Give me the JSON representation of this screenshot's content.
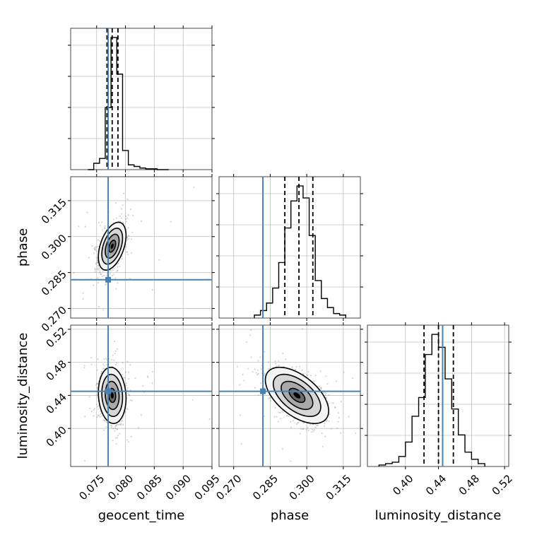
{
  "chart_data": {
    "type": "corner",
    "parameters": [
      "geocent_time",
      "phase",
      "luminosity_distance"
    ],
    "truths": {
      "geocent_time": 0.077,
      "phase": 0.282,
      "luminosity_distance": 0.445
    },
    "colors": {
      "truth": "#4682b4",
      "hist": "#000000",
      "grid": "#c0c0c0",
      "scatter": "#888888"
    },
    "grid": true,
    "axes": {
      "geocent_time": {
        "xlim": [
          0.0705,
          0.095
        ],
        "ticks": [
          0.075,
          0.08,
          0.085,
          0.09,
          0.095
        ],
        "tick_labels": [
          "0.075",
          "0.080",
          "0.085",
          "0.090",
          "0.095"
        ]
      },
      "phase": {
        "xlim": [
          0.264,
          0.322
        ],
        "ticks": [
          0.27,
          0.285,
          0.3,
          0.315
        ],
        "tick_labels": [
          "0.270",
          "0.285",
          "0.300",
          "0.315"
        ]
      },
      "luminosity_distance": {
        "xlim": [
          0.354,
          0.525
        ],
        "ticks": [
          0.4,
          0.44,
          0.48,
          0.52
        ],
        "tick_labels": [
          "0.40",
          "0.44",
          "0.48",
          "0.52"
        ]
      }
    },
    "histograms": [
      {
        "param": "geocent_time",
        "bins": [
          0.0735,
          0.0745,
          0.0755,
          0.0765,
          0.0775,
          0.0785,
          0.0795,
          0.0805,
          0.0815,
          0.0825,
          0.0835,
          0.0845,
          0.0855,
          0.0865
        ],
        "counts": [
          0,
          4,
          7,
          39,
          83,
          60,
          12,
          3,
          2,
          1,
          0.5,
          0.5,
          0,
          0
        ],
        "quantiles": [
          0.0768,
          0.0777,
          0.0787
        ]
      },
      {
        "param": "phase",
        "bins": [
          0.2785,
          0.281,
          0.2835,
          0.286,
          0.2885,
          0.291,
          0.2935,
          0.296,
          0.2985,
          0.301,
          0.3035,
          0.306,
          0.3085,
          0.311,
          0.3135
        ],
        "counts": [
          2,
          5,
          10,
          20,
          37,
          60,
          78,
          88,
          80,
          55,
          25,
          13,
          7,
          3,
          2
        ],
        "quantiles": [
          0.291,
          0.2968,
          0.3025
        ]
      },
      {
        "param": "luminosity_distance",
        "bins": [
          0.368,
          0.376,
          0.384,
          0.392,
          0.4,
          0.408,
          0.416,
          0.424,
          0.432,
          0.44,
          0.448,
          0.456,
          0.464,
          0.472,
          0.48,
          0.488
        ],
        "counts": [
          1,
          2,
          3,
          7,
          17,
          35,
          48,
          78,
          92,
          83,
          61,
          40,
          22,
          10,
          5,
          2
        ],
        "quantiles": [
          0.4225,
          0.44,
          0.458
        ]
      }
    ],
    "panels_2d": [
      {
        "x": "geocent_time",
        "y": "phase",
        "center": [
          0.0777,
          0.296
        ],
        "sigma": [
          0.0012,
          0.005
        ],
        "rho": 0.45,
        "ylim": [
          0.266,
          0.325
        ],
        "yticks": [
          0.27,
          0.285,
          0.3,
          0.315
        ],
        "ytick_labels": [
          "0.270",
          "0.285",
          "0.300",
          "0.315"
        ]
      },
      {
        "x": "geocent_time",
        "y": "luminosity_distance",
        "center": [
          0.0777,
          0.44
        ],
        "sigma": [
          0.0012,
          0.017
        ],
        "rho": -0.1,
        "ylim": [
          0.354,
          0.525
        ],
        "yticks": [
          0.4,
          0.44,
          0.48,
          0.52
        ],
        "ytick_labels": [
          "0.40",
          "0.44",
          "0.48",
          "0.52"
        ]
      },
      {
        "x": "phase",
        "y": "luminosity_distance",
        "center": [
          0.296,
          0.44
        ],
        "sigma": [
          0.0065,
          0.017
        ],
        "rho": -0.55,
        "ylim": [
          0.354,
          0.525
        ],
        "yticks": [
          0.4,
          0.44,
          0.48,
          0.52
        ],
        "ytick_labels": [
          "0.40",
          "0.44",
          "0.48",
          "0.52"
        ]
      }
    ],
    "xlabels": [
      "geocent_time",
      "phase",
      "luminosity_distance"
    ],
    "ylabels": [
      "phase",
      "luminosity_distance"
    ]
  }
}
